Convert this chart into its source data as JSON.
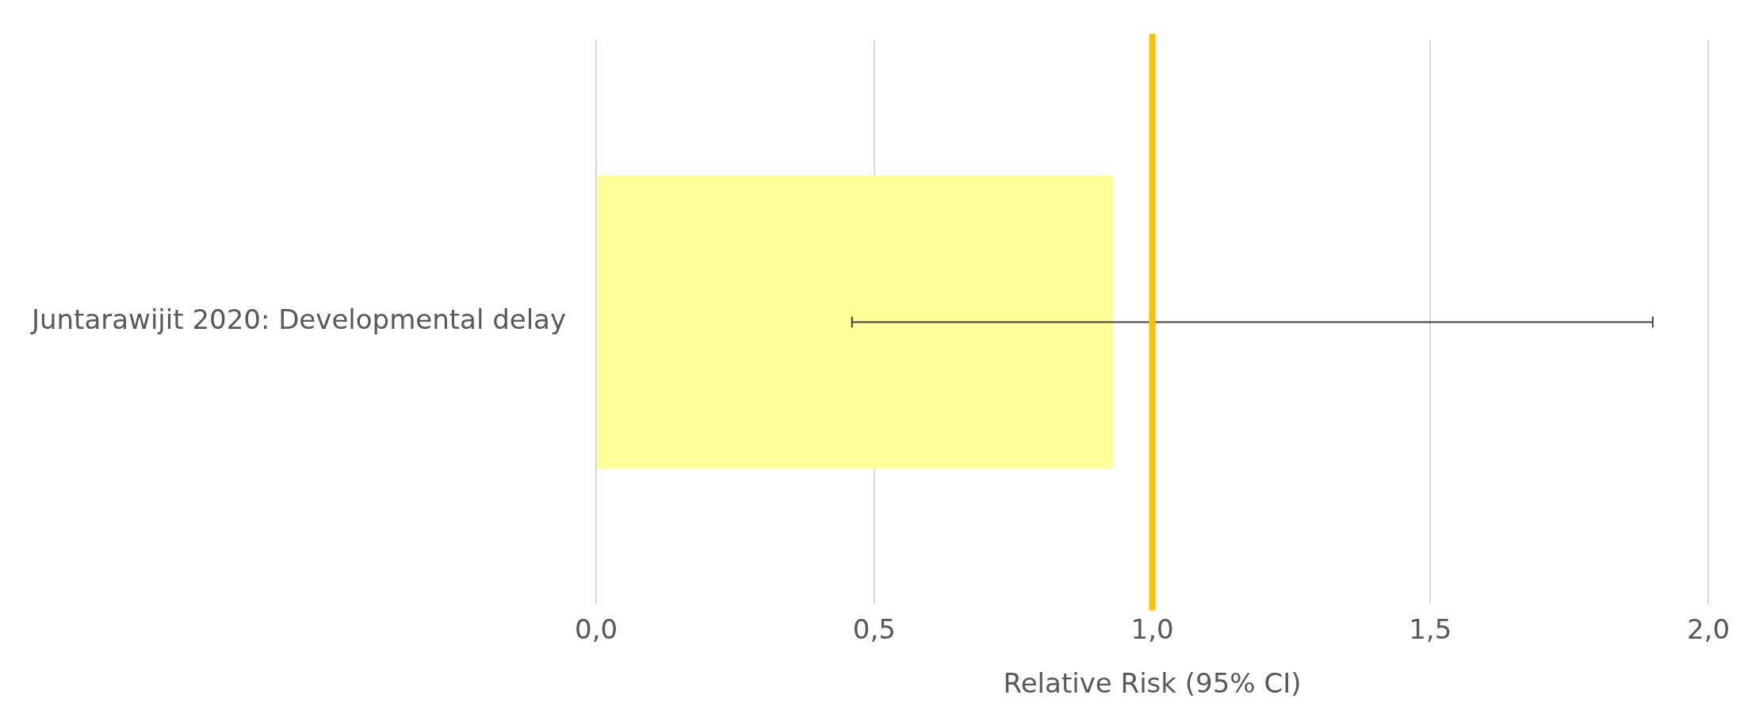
{
  "chart_data": {
    "type": "bar",
    "orientation": "horizontal",
    "xlabel": "Relative Risk (95% CI)",
    "categories": [
      "Juntarawijit 2020: Developmental delay"
    ],
    "values": [
      0.93
    ],
    "color": "#ffff99",
    "errors": [
      [
        0.46,
        1.9
      ]
    ],
    "xlim": [
      0,
      2
    ],
    "xticks": [
      {
        "value": 0,
        "label": "0,0"
      },
      {
        "value": 0.5,
        "label": "0,5"
      },
      {
        "value": 1,
        "label": "1,0"
      },
      {
        "value": 1.5,
        "label": "1,5"
      },
      {
        "value": 2,
        "label": "2,0"
      }
    ],
    "grid": "x",
    "legend": false,
    "ref_lines": [
      {
        "axis": "x",
        "value": 1,
        "color": "#ffc000"
      }
    ]
  }
}
